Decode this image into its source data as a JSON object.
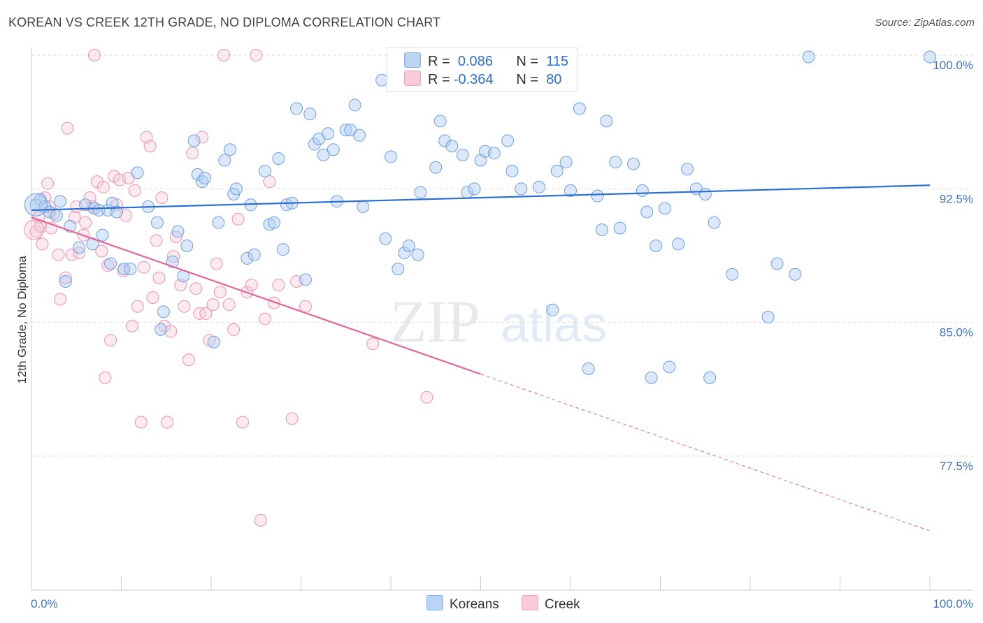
{
  "header": {
    "title": "KOREAN VS CREEK 12TH GRADE, NO DIPLOMA CORRELATION CHART",
    "source": "Source: ZipAtlas.com"
  },
  "watermark": {
    "zip": "ZIP",
    "atlas": "atlas"
  },
  "legend": {
    "rows": [
      {
        "r_label": "R =",
        "r_value": "0.086",
        "n_label": "N =",
        "n_value": "115",
        "color": "#7fb0ea"
      },
      {
        "r_label": "R =",
        "r_value": "-0.364",
        "n_label": "N =",
        "n_value": "80",
        "color": "#f2a3be"
      }
    ]
  },
  "bottom_legend": {
    "koreans": "Koreans",
    "creek": "Creek"
  },
  "colors": {
    "korean_fill": "#aecbf2",
    "korean_stroke": "#6f9fe0",
    "korean_line": "#2a6fd1",
    "creek_fill": "#f8c3d4",
    "creek_stroke": "#ec93b2",
    "creek_line": "#e4679a",
    "tick_label": "#3b74cc",
    "grid": "#dddddd"
  },
  "chart_data": {
    "type": "scatter",
    "title": "KOREAN VS CREEK 12TH GRADE, NO DIPLOMA CORRELATION CHART",
    "xlabel": "",
    "ylabel": "12th Grade, No Diploma",
    "xlim": [
      0,
      100
    ],
    "ylim": [
      70.0,
      101.0
    ],
    "x_tick_labels": [
      "0.0%",
      "100.0%"
    ],
    "y_ticks": [
      77.5,
      85.0,
      92.5,
      100.0
    ],
    "y_tick_labels": [
      "77.5%",
      "85.0%",
      "92.5%",
      "100.0%"
    ],
    "grid": true,
    "legend_position": "top-center",
    "series": [
      {
        "name": "Koreans",
        "R": 0.086,
        "N": 115,
        "trend": {
          "x": [
            0,
            100
          ],
          "y": [
            91.3,
            92.7
          ],
          "dashed_from": null
        },
        "points": [
          [
            0.5,
            91.6
          ],
          [
            1.0,
            91.9
          ],
          [
            1.5,
            91.5
          ],
          [
            2.0,
            91.2
          ],
          [
            2.8,
            91.0
          ],
          [
            3.2,
            91.8
          ],
          [
            3.8,
            87.3
          ],
          [
            4.3,
            90.4
          ],
          [
            5.3,
            89.2
          ],
          [
            6.0,
            91.6
          ],
          [
            6.8,
            89.4
          ],
          [
            7.0,
            91.4
          ],
          [
            7.5,
            91.3
          ],
          [
            7.9,
            89.9
          ],
          [
            8.5,
            91.3
          ],
          [
            8.8,
            88.3
          ],
          [
            9.0,
            91.7
          ],
          [
            9.5,
            91.2
          ],
          [
            10.3,
            88.0
          ],
          [
            11.0,
            88.0
          ],
          [
            11.8,
            93.4
          ],
          [
            13.0,
            91.5
          ],
          [
            14.0,
            90.6
          ],
          [
            14.4,
            84.6
          ],
          [
            14.7,
            85.6
          ],
          [
            15.7,
            88.4
          ],
          [
            16.3,
            90.1
          ],
          [
            16.9,
            87.6
          ],
          [
            17.3,
            89.3
          ],
          [
            18.1,
            95.2
          ],
          [
            18.5,
            93.3
          ],
          [
            19.0,
            92.9
          ],
          [
            19.3,
            93.1
          ],
          [
            20.3,
            83.9
          ],
          [
            20.8,
            90.6
          ],
          [
            21.5,
            94.1
          ],
          [
            22.1,
            94.7
          ],
          [
            22.5,
            92.2
          ],
          [
            22.8,
            92.5
          ],
          [
            24.0,
            88.6
          ],
          [
            24.4,
            91.6
          ],
          [
            24.8,
            88.8
          ],
          [
            26.0,
            93.5
          ],
          [
            26.5,
            90.5
          ],
          [
            27.0,
            90.6
          ],
          [
            27.5,
            94.2
          ],
          [
            28.0,
            89.1
          ],
          [
            28.4,
            91.6
          ],
          [
            29.0,
            91.7
          ],
          [
            29.5,
            97.0
          ],
          [
            30.5,
            87.4
          ],
          [
            31.0,
            96.7
          ],
          [
            31.5,
            95.0
          ],
          [
            32.0,
            95.3
          ],
          [
            32.5,
            94.4
          ],
          [
            33.0,
            95.6
          ],
          [
            33.6,
            94.7
          ],
          [
            34.0,
            91.8
          ],
          [
            35.0,
            95.8
          ],
          [
            35.5,
            95.8
          ],
          [
            36.0,
            97.2
          ],
          [
            36.5,
            95.5
          ],
          [
            36.9,
            91.5
          ],
          [
            39.0,
            98.6
          ],
          [
            39.4,
            89.7
          ],
          [
            40.0,
            94.3
          ],
          [
            40.8,
            88.0
          ],
          [
            41.5,
            88.9
          ],
          [
            42.0,
            89.3
          ],
          [
            43.0,
            88.8
          ],
          [
            43.3,
            92.3
          ],
          [
            45.0,
            93.7
          ],
          [
            45.5,
            96.3
          ],
          [
            46.0,
            95.2
          ],
          [
            46.8,
            94.9
          ],
          [
            48.0,
            94.4
          ],
          [
            48.5,
            92.3
          ],
          [
            49.3,
            92.5
          ],
          [
            50.0,
            94.1
          ],
          [
            50.5,
            94.6
          ],
          [
            51.5,
            94.5
          ],
          [
            53.0,
            95.2
          ],
          [
            53.5,
            93.5
          ],
          [
            54.5,
            92.5
          ],
          [
            56.5,
            92.6
          ],
          [
            58.0,
            85.7
          ],
          [
            58.5,
            93.5
          ],
          [
            59.5,
            94.0
          ],
          [
            60.0,
            92.4
          ],
          [
            61.0,
            97.0
          ],
          [
            62.0,
            82.4
          ],
          [
            63.0,
            92.1
          ],
          [
            63.5,
            90.2
          ],
          [
            64.0,
            96.3
          ],
          [
            65.0,
            94.0
          ],
          [
            65.5,
            90.3
          ],
          [
            67.0,
            93.9
          ],
          [
            68.0,
            92.4
          ],
          [
            68.5,
            91.2
          ],
          [
            69.0,
            81.9
          ],
          [
            69.5,
            89.3
          ],
          [
            70.5,
            91.4
          ],
          [
            71.0,
            82.5
          ],
          [
            72.0,
            89.4
          ],
          [
            73.0,
            93.6
          ],
          [
            74.0,
            92.5
          ],
          [
            75.0,
            92.2
          ],
          [
            75.5,
            81.9
          ],
          [
            76.0,
            90.6
          ],
          [
            78.0,
            87.7
          ],
          [
            82.0,
            85.3
          ],
          [
            83.0,
            88.3
          ],
          [
            85.0,
            87.7
          ],
          [
            86.5,
            99.9
          ],
          [
            100.0,
            99.9
          ]
        ]
      },
      {
        "name": "Creek",
        "R": -0.364,
        "N": 80,
        "trend": {
          "x": [
            0,
            100
          ],
          "y": [
            90.9,
            73.3
          ],
          "dashed_from": 50
        },
        "points": [
          [
            0.5,
            90.1
          ],
          [
            0.8,
            90.9
          ],
          [
            1.0,
            90.4
          ],
          [
            1.2,
            89.4
          ],
          [
            1.5,
            92.0
          ],
          [
            1.8,
            92.8
          ],
          [
            2.0,
            91.5
          ],
          [
            2.2,
            90.3
          ],
          [
            2.5,
            91.1
          ],
          [
            3.0,
            88.8
          ],
          [
            3.2,
            86.3
          ],
          [
            3.8,
            87.5
          ],
          [
            4.0,
            95.9
          ],
          [
            4.5,
            88.8
          ],
          [
            4.8,
            90.9
          ],
          [
            5.0,
            91.5
          ],
          [
            5.3,
            88.9
          ],
          [
            5.8,
            89.9
          ],
          [
            6.0,
            90.6
          ],
          [
            6.5,
            92.0
          ],
          [
            6.8,
            91.5
          ],
          [
            7.0,
            100.0
          ],
          [
            7.3,
            92.9
          ],
          [
            7.8,
            89.0
          ],
          [
            8.0,
            92.6
          ],
          [
            8.2,
            81.9
          ],
          [
            8.5,
            88.2
          ],
          [
            8.8,
            84.0
          ],
          [
            9.2,
            93.2
          ],
          [
            9.5,
            91.6
          ],
          [
            9.8,
            93.0
          ],
          [
            10.2,
            87.9
          ],
          [
            10.5,
            91.0
          ],
          [
            10.8,
            93.1
          ],
          [
            11.2,
            84.8
          ],
          [
            11.5,
            92.4
          ],
          [
            11.8,
            85.9
          ],
          [
            12.2,
            79.4
          ],
          [
            12.5,
            88.1
          ],
          [
            12.8,
            95.4
          ],
          [
            13.2,
            94.9
          ],
          [
            13.5,
            86.4
          ],
          [
            13.9,
            89.6
          ],
          [
            14.2,
            87.5
          ],
          [
            14.5,
            92.0
          ],
          [
            14.8,
            84.8
          ],
          [
            15.1,
            79.4
          ],
          [
            15.5,
            84.5
          ],
          [
            15.8,
            88.7
          ],
          [
            16.1,
            89.8
          ],
          [
            16.6,
            87.1
          ],
          [
            17.0,
            85.9
          ],
          [
            17.5,
            82.9
          ],
          [
            17.9,
            94.5
          ],
          [
            18.3,
            86.9
          ],
          [
            18.7,
            85.5
          ],
          [
            19.0,
            95.4
          ],
          [
            19.4,
            85.5
          ],
          [
            19.8,
            84.0
          ],
          [
            20.2,
            86.0
          ],
          [
            20.6,
            88.3
          ],
          [
            21.0,
            86.7
          ],
          [
            21.4,
            100.0
          ],
          [
            22.0,
            86.0
          ],
          [
            22.5,
            84.6
          ],
          [
            23.0,
            90.8
          ],
          [
            23.5,
            79.4
          ],
          [
            24.0,
            86.7
          ],
          [
            24.5,
            87.1
          ],
          [
            25.0,
            100.0
          ],
          [
            25.5,
            73.9
          ],
          [
            26.0,
            85.2
          ],
          [
            26.5,
            92.9
          ],
          [
            27.0,
            86.1
          ],
          [
            27.5,
            87.1
          ],
          [
            29.0,
            79.6
          ],
          [
            29.5,
            87.3
          ],
          [
            30.5,
            85.9
          ],
          [
            38.0,
            83.8
          ],
          [
            44.0,
            80.8
          ]
        ]
      }
    ]
  }
}
